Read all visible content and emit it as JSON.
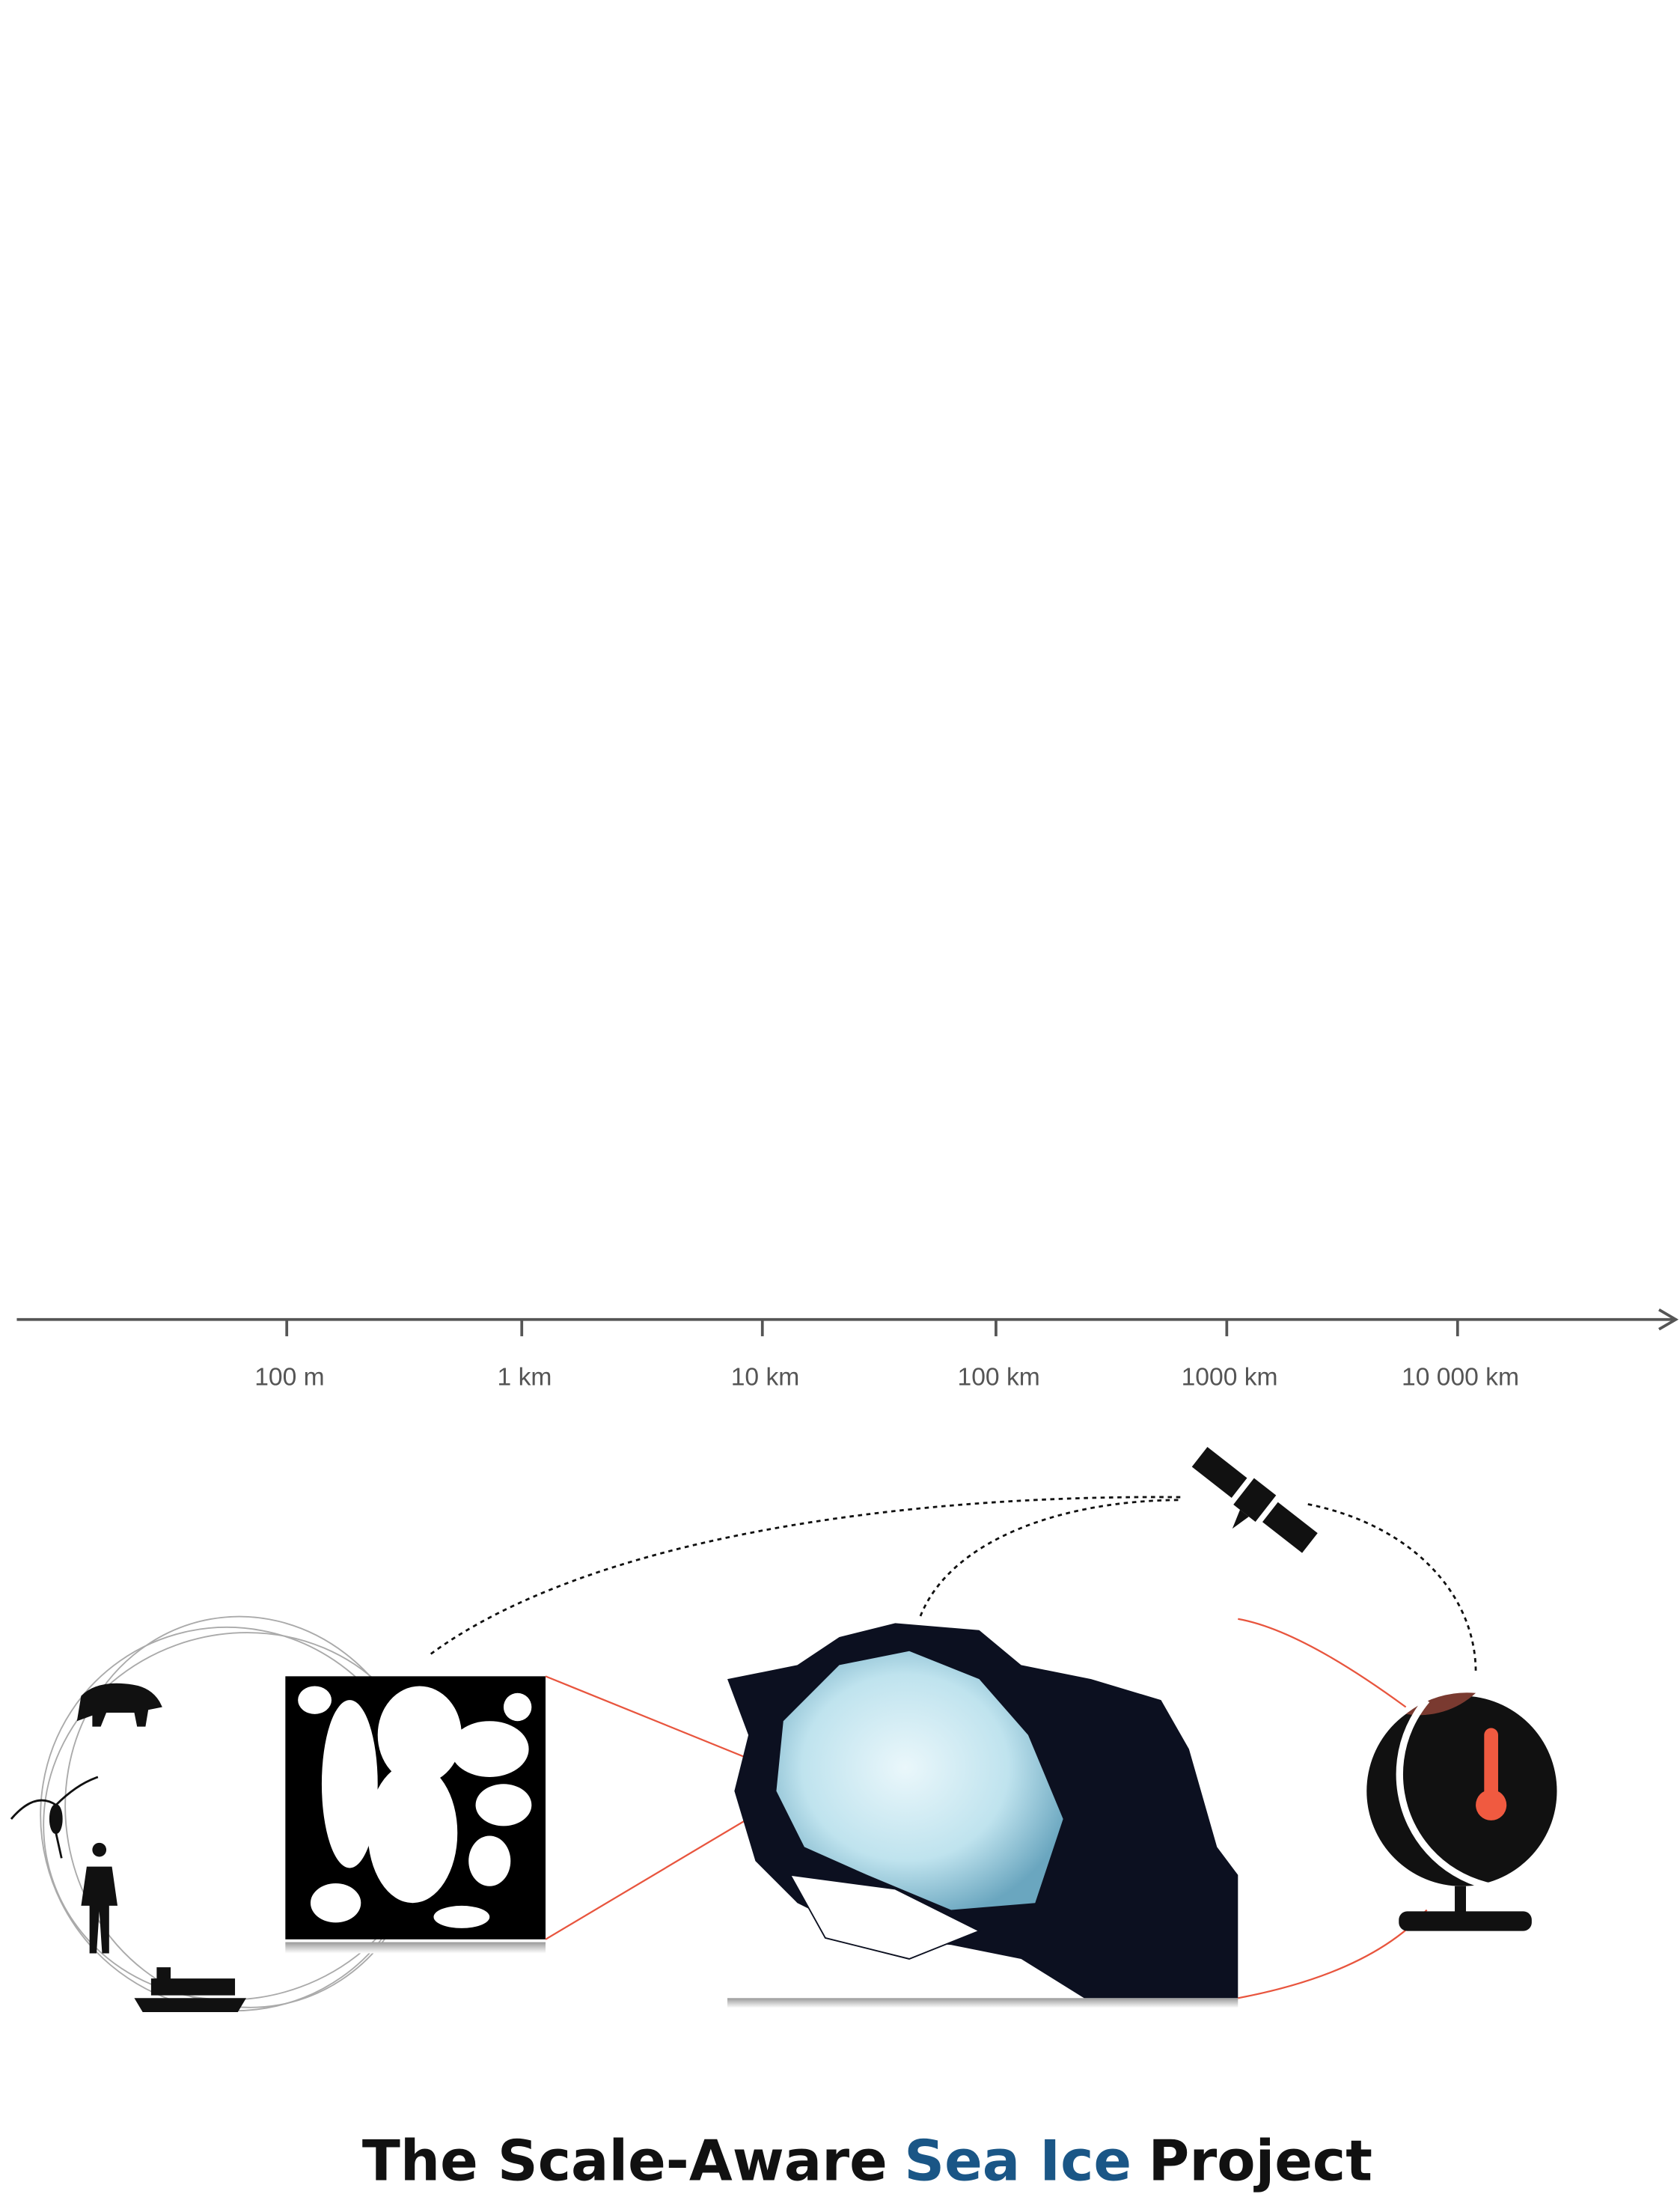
{
  "axis": {
    "ticks": [
      "100 m",
      "1 km",
      "10 km",
      "100 km",
      "1000 km",
      "10 000 km"
    ]
  },
  "title": {
    "parts": [
      "The Scale-Aware",
      "Sea Ice",
      "Project"
    ]
  }
}
